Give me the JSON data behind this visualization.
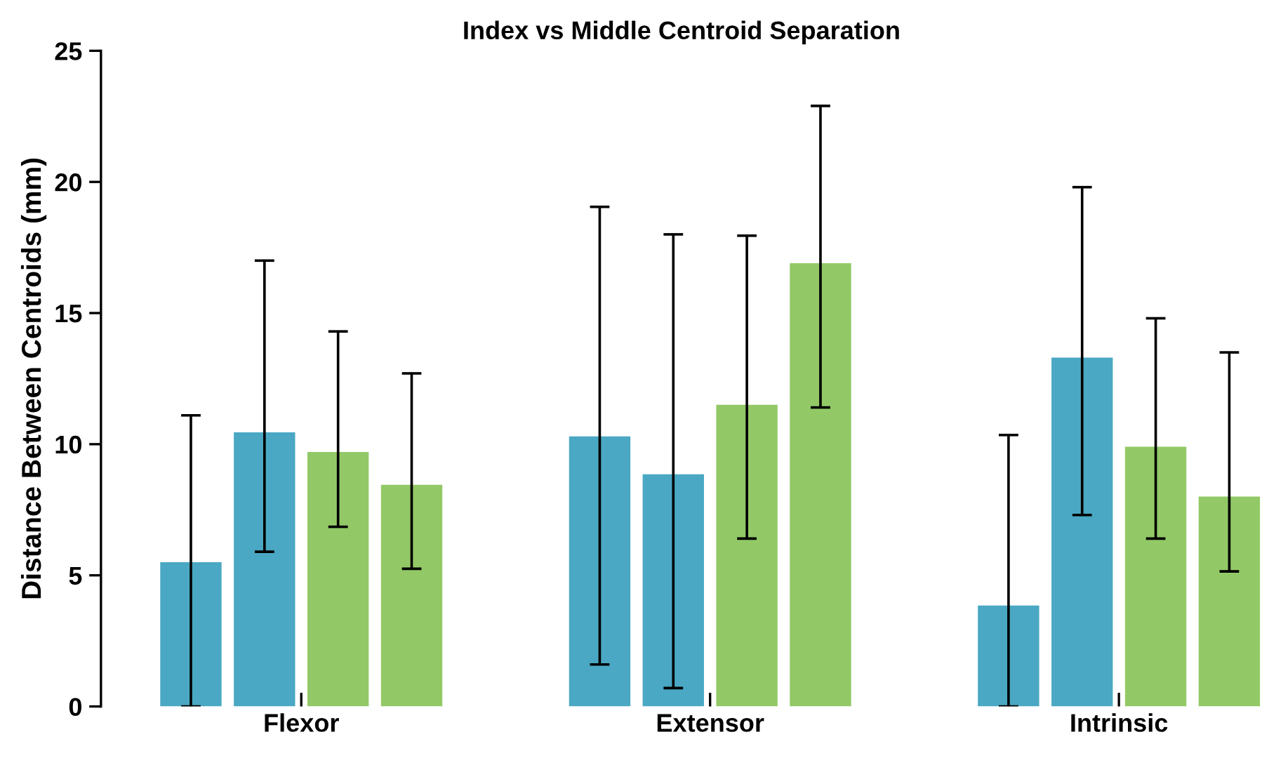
{
  "chart_data": {
    "type": "bar",
    "title": "Index vs Middle Centroid Separation",
    "ylabel": "Distance Between Centroids (mm)",
    "categories": [
      "Flexor",
      "Extensor",
      "Intrinsic"
    ],
    "series": [
      {
        "color": "#4aa8c4",
        "values": [
          5.5,
          10.3,
          3.85
        ],
        "errors": [
          [
            0,
            11.1
          ],
          [
            1.6,
            19.05
          ],
          [
            0,
            10.35
          ]
        ]
      },
      {
        "color": "#4aa8c4",
        "values": [
          10.45,
          8.85,
          13.3
        ],
        "errors": [
          [
            5.9,
            17.0
          ],
          [
            0.7,
            18.0
          ],
          [
            7.3,
            19.8
          ]
        ]
      },
      {
        "color": "#92c966",
        "values": [
          9.7,
          11.5,
          9.9
        ],
        "errors": [
          [
            6.85,
            14.3
          ],
          [
            6.4,
            17.95
          ],
          [
            6.4,
            14.8
          ]
        ]
      },
      {
        "color": "#92c966",
        "values": [
          8.45,
          16.9,
          8.0
        ],
        "errors": [
          [
            5.25,
            12.7
          ],
          [
            11.4,
            22.9
          ],
          [
            5.15,
            13.5
          ]
        ]
      }
    ],
    "ylim": [
      0,
      25
    ],
    "yticks": [
      0,
      5,
      10,
      15,
      20,
      25
    ],
    "grid": false,
    "legend": false
  }
}
